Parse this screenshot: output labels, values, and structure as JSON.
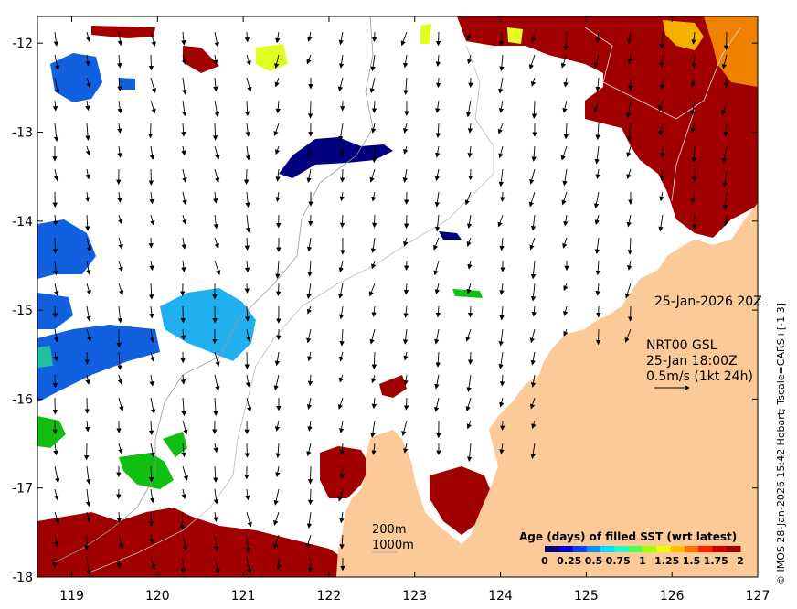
{
  "map": {
    "lon_ticks": [
      "119",
      "120",
      "121",
      "122",
      "123",
      "124",
      "125",
      "126",
      "127"
    ],
    "lat_ticks": [
      "-12",
      "-13",
      "-14",
      "-15",
      "-16",
      "-17",
      "-18"
    ],
    "lon_range": [
      118.6,
      127.0
    ],
    "lat_range": [
      -11.7,
      -18.0
    ]
  },
  "annotations": {
    "timestamp": "25-Jan-2026 20Z",
    "current_model": "NRT00 GSL",
    "current_time": "25-Jan 18:00Z",
    "current_scale": "0.5m/s (1kt 24h)",
    "depth_label_1": "200m",
    "depth_label_2": "1000m"
  },
  "credit": "© IMOS 28-Jan-2026 15:42 Hobart; Tscale=CARS+[-1 3]",
  "colorbar": {
    "title": "Age (days) of filled SST (wrt latest)",
    "tick_labels": [
      "0",
      "0.25",
      "0.5",
      "0.75",
      "1",
      "1.25",
      "1.5",
      "1.75",
      "2"
    ],
    "colors": [
      "#00007f",
      "#0000d0",
      "#0040ff",
      "#0090ff",
      "#00e0ff",
      "#20ffd0",
      "#50ff50",
      "#a0ff00",
      "#f0ff00",
      "#ffc000",
      "#ff7000",
      "#ff2000",
      "#d00000",
      "#a00000"
    ]
  },
  "colors": {
    "land": "#fcc998",
    "sst_dark_red": "#a00000",
    "sst_navy": "#000080",
    "sst_blue": "#1060e0",
    "sst_light_blue": "#20b0f0",
    "sst_green": "#10c010",
    "sst_yellow": "#e0ff20",
    "sst_orange": "#f08000"
  }
}
